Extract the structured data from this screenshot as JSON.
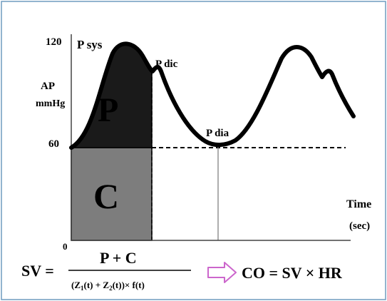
{
  "axis": {
    "y_tick_top": "120",
    "y_tick_mid": "60",
    "origin": "0",
    "y_label_line1": "AP",
    "y_label_line2": "mmHg",
    "x_label_line1": "Time",
    "x_label_line2": "(sec)"
  },
  "curve_labels": {
    "systolic": "P sys",
    "dicrotic": "P dic",
    "diastolic": "P dia"
  },
  "areas": {
    "upper": "P",
    "lower": "C"
  },
  "formula": {
    "lhs": "SV =",
    "numerator": "P + C",
    "den_open": "(Z",
    "den_sub1": "1",
    "den_mid": "(t) + Z",
    "den_sub2": "2",
    "den_close": "(t))× f(t)",
    "result": "CO = SV × HR"
  },
  "colors": {
    "frame": "#6e9bbf",
    "area_p": "#1a1a1a",
    "area_c": "#7d7d7d",
    "arrow": "#cc66cc",
    "label_p": "#3a3a3a",
    "label_c": "#111111"
  }
}
